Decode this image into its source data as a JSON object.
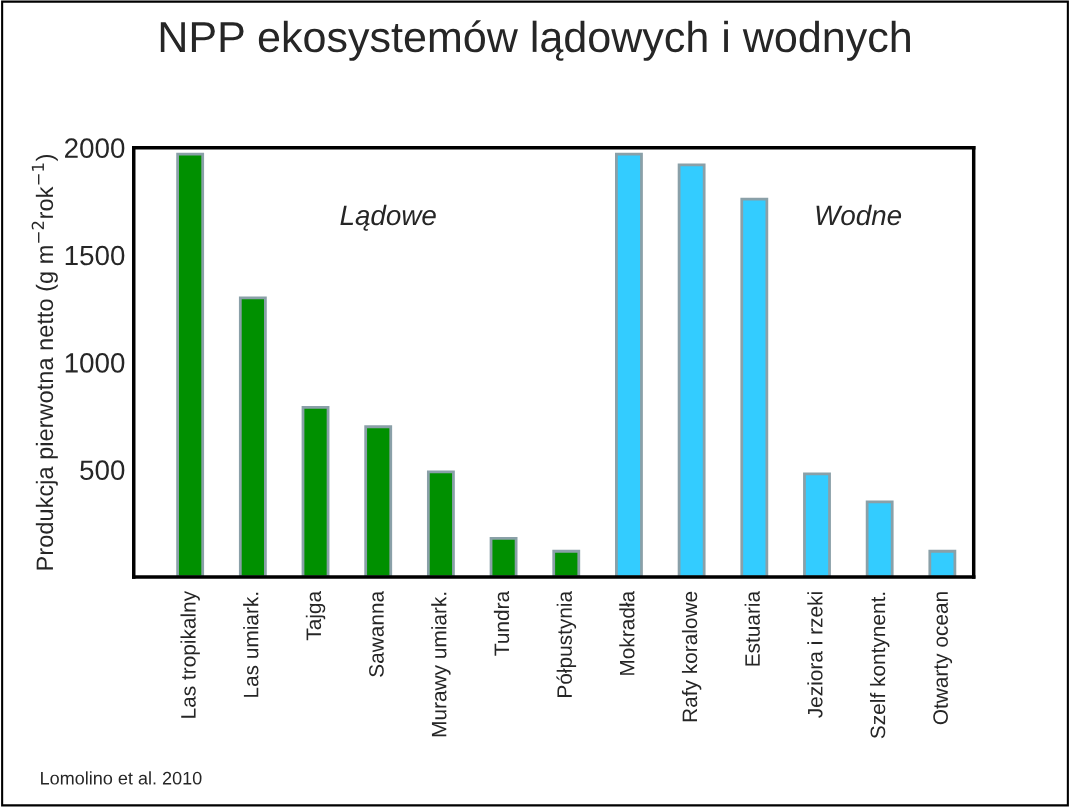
{
  "chart_data": {
    "type": "bar",
    "title": "NPP ekosystemów lądowych i wodnych",
    "ylabel": "Produkcja pierwotna netto (g m$^{−2}$rok$^{−1}$)",
    "categories": [
      "Las tropikalny",
      "Las umiark.",
      "Tajga",
      "Sawanna",
      "Murawy umiark.",
      "Tundra",
      "Półpustynia",
      "Mokradła",
      "Rafy koralowe",
      "Estuaria",
      "Jeziora i rzeki",
      "Szelf kontynent.",
      "Otwarty ocean"
    ],
    "values": [
      1970,
      1300,
      790,
      700,
      490,
      180,
      120,
      1970,
      1920,
      1760,
      480,
      350,
      120
    ],
    "colors": [
      "#009000",
      "#009000",
      "#009000",
      "#009000",
      "#009000",
      "#009000",
      "#009000",
      "#33ccff",
      "#33ccff",
      "#33ccff",
      "#33ccff",
      "#33ccff",
      "#33ccff"
    ],
    "ylim": [
      0,
      2000
    ],
    "yticks": [
      500,
      1000,
      1500,
      2000
    ],
    "grid": false,
    "legend": false,
    "annotations": [
      "Lądowe",
      "Wodne",
      "Lomolino et al. 2010"
    ]
  }
}
